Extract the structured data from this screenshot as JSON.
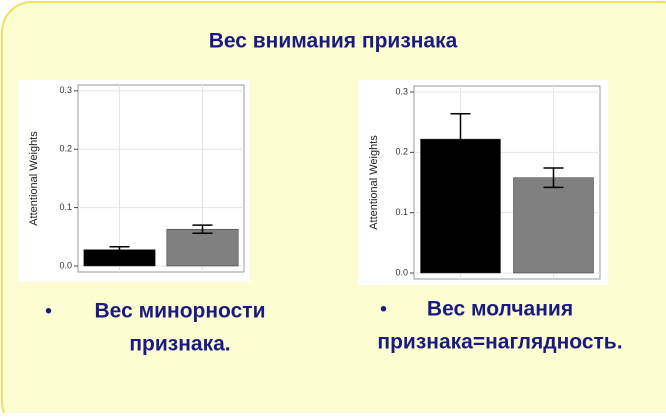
{
  "title": "Вес внимания признака",
  "chart_data": [
    {
      "type": "bar",
      "y_label": "Attentional Weights",
      "values": [
        0.028,
        0.063
      ],
      "errors": [
        0.005,
        0.007
      ],
      "colors": [
        "#000000",
        "#808080"
      ],
      "ylim": [
        0,
        0.31
      ],
      "yticks": [
        {
          "value": 0,
          "label": "0.0"
        },
        0.1,
        0.2,
        0.3
      ],
      "grid": true
    },
    {
      "type": "bar",
      "y_label": "Attentional Weights",
      "values": [
        0.222,
        0.158
      ],
      "errors": [
        0.042,
        0.016
      ],
      "colors": [
        "#000000",
        "#808080"
      ],
      "ylim": [
        0,
        0.31
      ],
      "yticks": [
        {
          "value": 0,
          "label": "0.0"
        },
        0.1,
        0.2,
        0.3
      ],
      "grid": true
    }
  ],
  "bullets": [
    {
      "lines": [
        "Вес минорности",
        "признака."
      ]
    },
    {
      "lines": [
        "Вес молчания",
        "признака=наглядность."
      ]
    }
  ]
}
